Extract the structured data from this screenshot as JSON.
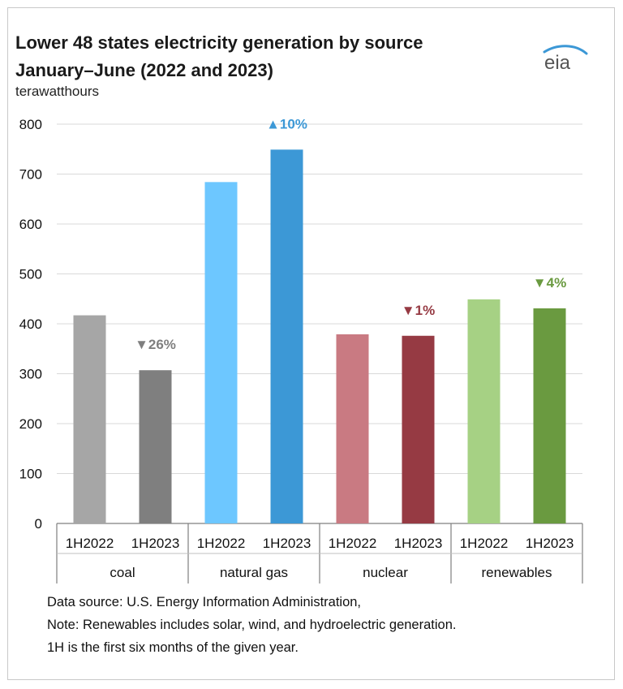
{
  "header": {
    "title_line1": "Lower 48 states electricity generation by source",
    "title_line2": "January–June (2022 and 2023)",
    "unit": "terawatthours",
    "logo_text": "eia"
  },
  "chart_data": {
    "type": "bar",
    "title": "Lower 48 states electricity generation by source January–June (2022 and 2023)",
    "ylabel": "terawatthours",
    "ylim": [
      0,
      800
    ],
    "yticks": [
      0,
      100,
      200,
      300,
      400,
      500,
      600,
      700,
      800
    ],
    "grid": true,
    "groups": [
      {
        "name": "coal",
        "bars": [
          {
            "label": "1H2022",
            "value": 417,
            "color": "#a6a6a6"
          },
          {
            "label": "1H2023",
            "value": 307,
            "color": "#7f7f7f"
          }
        ],
        "change": {
          "text": "▼26%",
          "color": "#7f7f7f"
        }
      },
      {
        "name": "natural gas",
        "bars": [
          {
            "label": "1H2022",
            "value": 684,
            "color": "#6dc7ff"
          },
          {
            "label": "1H2023",
            "value": 749,
            "color": "#3c98d6"
          }
        ],
        "change": {
          "text": "▲10%",
          "color": "#3c98d6"
        }
      },
      {
        "name": "nuclear",
        "bars": [
          {
            "label": "1H2022",
            "value": 379,
            "color": "#c97a82"
          },
          {
            "label": "1H2023",
            "value": 376,
            "color": "#963a43"
          }
        ],
        "change": {
          "text": "▼1%",
          "color": "#963a43"
        }
      },
      {
        "name": "renewables",
        "bars": [
          {
            "label": "1H2022",
            "value": 449,
            "color": "#a6d184"
          },
          {
            "label": "1H2023",
            "value": 431,
            "color": "#6a9a40"
          }
        ],
        "change": {
          "text": "▼4%",
          "color": "#6a9a40"
        }
      }
    ]
  },
  "notes": [
    "Data source: U.S. Energy Information Administration,",
    "Note: Renewables includes solar, wind, and hydroelectric generation.",
    "1H is the first six months of the given year."
  ]
}
